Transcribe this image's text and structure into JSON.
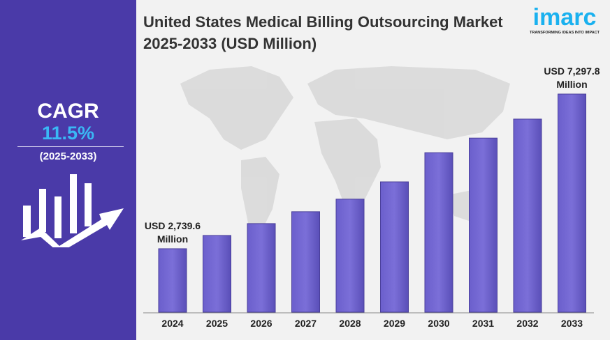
{
  "title": "United States Medical Billing Outsourcing Market 2025-2033 (USD Million)",
  "logo": {
    "text": "imarc",
    "tagline": "TRANSFORMING IDEAS INTO IMPACT"
  },
  "sidebar": {
    "cagr_label": "CAGR",
    "cagr_value": "11.5%",
    "period": "(2025-2033)",
    "icon": "growth-chart-arrow-icon"
  },
  "colors": {
    "sidebar": "#4a3aa8",
    "bar": "#7b6fd8",
    "accent": "#3ab8f5"
  },
  "chart_data": {
    "type": "bar",
    "title": "United States Medical Billing Outsourcing Market 2025-2033 (USD Million)",
    "categories": [
      "2024",
      "2025",
      "2026",
      "2027",
      "2028",
      "2029",
      "2030",
      "2031",
      "2032",
      "2033"
    ],
    "values": [
      2739.6,
      3130,
      3480,
      3830,
      4200,
      4710,
      5570,
      6000,
      6560,
      7297.8
    ],
    "data_labels": {
      "first": [
        "USD 2,739.6",
        "Million"
      ],
      "last": [
        "USD 7,297.8",
        "Million"
      ]
    },
    "ylim": [
      870,
      7500
    ],
    "grid": false,
    "legend": "none"
  }
}
